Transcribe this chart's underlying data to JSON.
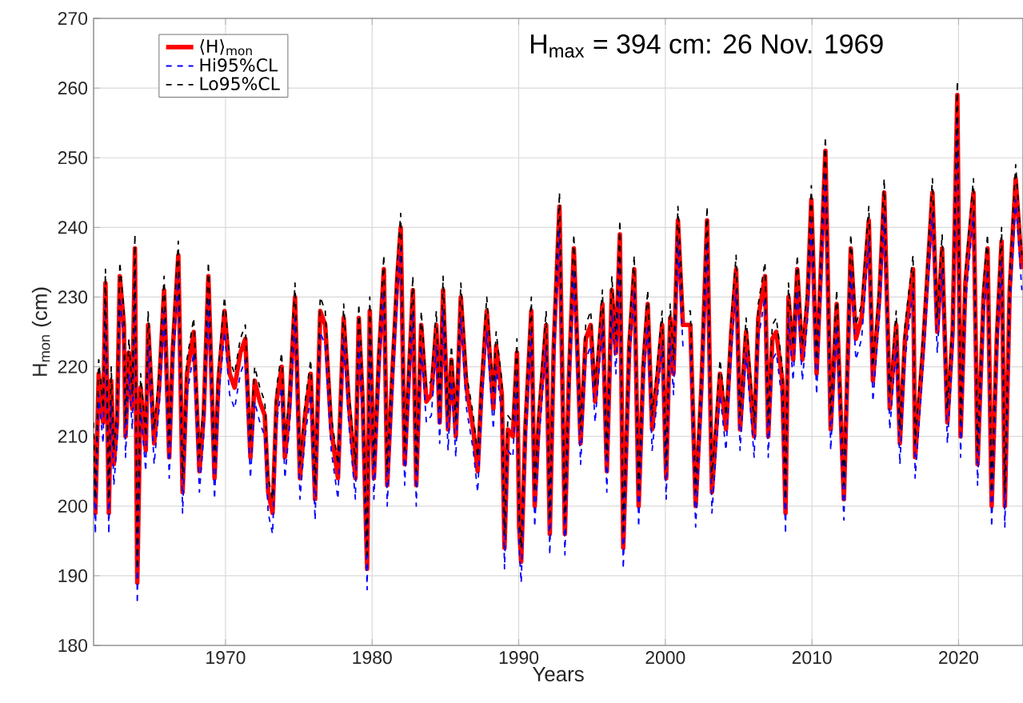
{
  "chart_data": {
    "type": "line",
    "xlabel": "Years",
    "ylabel": "H$_{mon}$  (cm)",
    "annotations": [
      "H$_{max}$ = 394 cm: 26 Nov. 1969"
    ],
    "xlim": [
      1961,
      2024.4
    ],
    "ylim": [
      180,
      270
    ],
    "xticks": [
      1970,
      1980,
      1990,
      2000,
      2010,
      2020
    ],
    "yticks": [
      180,
      190,
      200,
      210,
      220,
      230,
      240,
      250,
      260,
      270
    ],
    "grid": true,
    "legend": "top left",
    "marker": "none",
    "x": [
      1961.0,
      1961.12,
      1961.35,
      1961.65,
      1961.81,
      1962.04,
      1962.2,
      1962.38,
      1962.6,
      1962.79,
      1963.07,
      1963.18,
      1963.41,
      1963.64,
      1963.82,
      1963.98,
      1964.21,
      1964.56,
      1964.72,
      1965.13,
      1965.47,
      1965.81,
      1966.16,
      1966.39,
      1966.78,
      1967.07,
      1967.37,
      1967.83,
      1968.22,
      1968.51,
      1968.83,
      1969.25,
      1969.52,
      1969.93,
      1970.28,
      1970.62,
      1971.01,
      1971.35,
      1971.7,
      1971.99,
      1972.34,
      1972.68,
      1972.91,
      1973.21,
      1973.48,
      1973.83,
      1974.05,
      1974.35,
      1974.74,
      1975.08,
      1975.43,
      1975.81,
      1976.11,
      1976.46,
      1976.8,
      1977.21,
      1977.67,
      1978.06,
      1978.4,
      1978.86,
      1979.09,
      1979.36,
      1979.66,
      1979.84,
      1980.12,
      1980.46,
      1980.8,
      1981.03,
      1981.38,
      1981.72,
      1981.95,
      1982.22,
      1982.78,
      1983.01,
      1983.35,
      1983.7,
      1984.04,
      1984.38,
      1984.61,
      1984.84,
      1985.18,
      1985.41,
      1985.71,
      1986.05,
      1986.44,
      1986.9,
      1987.2,
      1987.47,
      1987.82,
      1988.27,
      1988.46,
      1988.85,
      1989.03,
      1989.26,
      1989.6,
      1989.88,
      1990.03,
      1990.17,
      1990.45,
      1990.86,
      1991.09,
      1991.36,
      1991.87,
      1992.12,
      1992.39,
      1992.78,
      1993.15,
      1993.42,
      1993.76,
      1994.22,
      1994.57,
      1994.91,
      1995.21,
      1995.71,
      1996.01,
      1996.35,
      1996.63,
      1996.9,
      1997.13,
      1997.54,
      1997.88,
      1998.18,
      1998.5,
      1998.8,
      1999.1,
      1999.48,
      1999.78,
      2000.06,
      2000.33,
      2000.56,
      2000.86,
      2001.2,
      2001.71,
      2002.07,
      2002.46,
      2002.85,
      2003.18,
      2003.73,
      2004.14,
      2004.5,
      2004.83,
      2005.1,
      2005.51,
      2006.06,
      2006.34,
      2006.8,
      2007.02,
      2007.3,
      2007.57,
      2007.98,
      2008.2,
      2008.4,
      2008.72,
      2009.0,
      2009.35,
      2009.71,
      2009.96,
      2010.32,
      2010.59,
      2010.92,
      2011.28,
      2011.69,
      2012.18,
      2012.65,
      2013.0,
      2013.39,
      2013.88,
      2014.16,
      2014.6,
      2014.93,
      2015.31,
      2015.75,
      2016.0,
      2016.35,
      2016.9,
      2017.04,
      2017.59,
      2018.22,
      2018.55,
      2018.88,
      2019.24,
      2019.6,
      2019.92,
      2020.14,
      2020.47,
      2021.02,
      2021.3,
      2021.71,
      2021.98,
      2022.26,
      2022.61,
      2022.94,
      2023.16,
      2023.49,
      2023.9,
      2024.32
    ],
    "series": [
      {
        "name": "⟨H⟩$_{mon}$",
        "color": "#ff0000",
        "line_style": "solid",
        "values": [
          210,
          199,
          219,
          212,
          232,
          199,
          218,
          206,
          212,
          233,
          226,
          210,
          222,
          214,
          237,
          189,
          217,
          208,
          226,
          209,
          217,
          231,
          207,
          222,
          236,
          202,
          219,
          225,
          205,
          213,
          233,
          204,
          218,
          228,
          219,
          217,
          222,
          224,
          207,
          218,
          215,
          213,
          202,
          199,
          215,
          220,
          207,
          214,
          230,
          204,
          213,
          219,
          201,
          228,
          226,
          211,
          204,
          227,
          215,
          204,
          227,
          215,
          191,
          228,
          204,
          221,
          234,
          203,
          219,
          233,
          240,
          206,
          231,
          203,
          226,
          215,
          216,
          226,
          212,
          231,
          211,
          221,
          210,
          230,
          217,
          211,
          205,
          217,
          228,
          214,
          223,
          216,
          194,
          211,
          210,
          222,
          197,
          192,
          211,
          228,
          200,
          212,
          226,
          196,
          223,
          243,
          196,
          218,
          237,
          209,
          224,
          226,
          215,
          229,
          205,
          231,
          222,
          239,
          194,
          223,
          234,
          200,
          220,
          229,
          211,
          219,
          226,
          204,
          227,
          219,
          241,
          226,
          226,
          200,
          217,
          241,
          202,
          219,
          211,
          225,
          234,
          211,
          225,
          210,
          227,
          233,
          210,
          224,
          225,
          218,
          199,
          230,
          221,
          234,
          221,
          230,
          244,
          219,
          233,
          251,
          211,
          229,
          201,
          237,
          224,
          227,
          241,
          218,
          230,
          245,
          214,
          226,
          209,
          224,
          234,
          207,
          223,
          245,
          225,
          237,
          212,
          225,
          259,
          210,
          232,
          245,
          206,
          230,
          237,
          200,
          224,
          238,
          200,
          231,
          247,
          234
        ]
      },
      {
        "name": "Hi95%CL",
        "color": "#0000ff",
        "line_style": "dashed",
        "values": [
          207,
          196,
          216,
          209,
          229,
          196,
          215,
          203,
          209,
          230,
          223,
          207,
          219,
          211,
          234,
          186,
          214,
          205,
          223,
          206,
          214,
          228,
          204,
          219,
          233,
          199,
          216,
          222,
          202,
          210,
          230,
          201,
          215,
          225,
          216,
          214,
          219,
          221,
          204,
          215,
          212,
          210,
          199,
          196,
          212,
          217,
          204,
          211,
          227,
          201,
          210,
          216,
          198,
          225,
          223,
          208,
          201,
          224,
          212,
          201,
          224,
          212,
          188,
          225,
          201,
          218,
          231,
          200,
          216,
          230,
          237,
          203,
          228,
          200,
          223,
          212,
          213,
          223,
          209,
          228,
          208,
          218,
          207,
          227,
          214,
          208,
          202,
          214,
          225,
          211,
          220,
          213,
          191,
          208,
          207,
          219,
          194,
          189,
          208,
          225,
          197,
          209,
          223,
          193,
          220,
          240,
          193,
          215,
          234,
          206,
          221,
          223,
          212,
          226,
          202,
          228,
          219,
          236,
          191,
          220,
          231,
          197,
          217,
          226,
          208,
          216,
          223,
          201,
          224,
          216,
          238,
          223,
          223,
          197,
          214,
          238,
          199,
          216,
          208,
          222,
          231,
          208,
          222,
          207,
          224,
          230,
          207,
          221,
          222,
          215,
          196,
          227,
          218,
          231,
          218,
          227,
          241,
          216,
          230,
          248,
          208,
          226,
          198,
          234,
          221,
          224,
          238,
          215,
          227,
          242,
          211,
          223,
          206,
          221,
          231,
          204,
          220,
          242,
          222,
          234,
          209,
          222,
          256,
          207,
          229,
          242,
          203,
          227,
          234,
          197,
          221,
          235,
          197,
          228,
          244,
          231
        ]
      },
      {
        "name": "Lo95%CL",
        "color": "#000000",
        "line_style": "dashed",
        "values": [
          212,
          201,
          221,
          214,
          234,
          201,
          220,
          208,
          214,
          235,
          228,
          212,
          224,
          216,
          239,
          191,
          219,
          210,
          228,
          211,
          219,
          233,
          209,
          224,
          238,
          204,
          221,
          227,
          207,
          215,
          235,
          206,
          220,
          230,
          221,
          219,
          224,
          226,
          209,
          220,
          217,
          215,
          204,
          201,
          217,
          222,
          209,
          216,
          232,
          206,
          215,
          221,
          203,
          230,
          228,
          213,
          206,
          229,
          217,
          206,
          229,
          217,
          193,
          230,
          206,
          223,
          236,
          205,
          221,
          235,
          242,
          208,
          233,
          205,
          228,
          217,
          218,
          228,
          214,
          233,
          213,
          223,
          212,
          232,
          219,
          213,
          207,
          219,
          230,
          216,
          225,
          218,
          196,
          213,
          212,
          224,
          199,
          194,
          213,
          230,
          202,
          214,
          228,
          198,
          225,
          245,
          198,
          220,
          239,
          211,
          226,
          228,
          217,
          231,
          207,
          233,
          224,
          241,
          196,
          225,
          236,
          202,
          222,
          231,
          213,
          221,
          228,
          206,
          229,
          221,
          243,
          228,
          228,
          202,
          219,
          243,
          204,
          221,
          213,
          227,
          236,
          213,
          227,
          212,
          229,
          235,
          212,
          226,
          227,
          220,
          201,
          232,
          223,
          236,
          223,
          232,
          246,
          221,
          235,
          253,
          213,
          231,
          203,
          239,
          226,
          229,
          243,
          220,
          232,
          247,
          216,
          228,
          211,
          226,
          236,
          209,
          225,
          247,
          227,
          239,
          214,
          227,
          261,
          212,
          234,
          247,
          208,
          232,
          239,
          202,
          226,
          240,
          202,
          233,
          249,
          236
        ]
      }
    ]
  }
}
